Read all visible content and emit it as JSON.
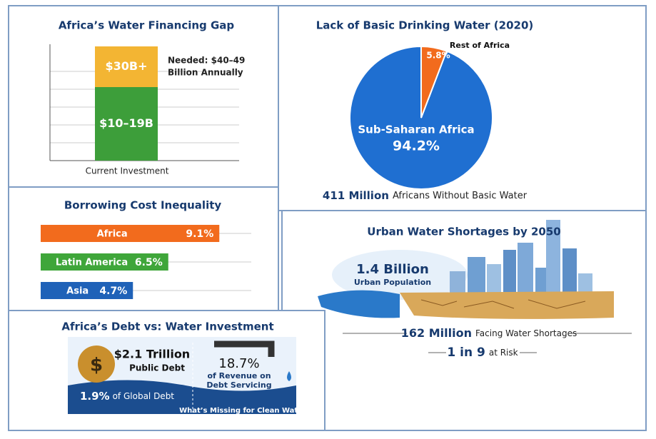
{
  "financing_gap": {
    "title": "Africa’s Water Financing Gap",
    "segments": [
      {
        "label": "$10–19B",
        "color": "#3d9e3a"
      },
      {
        "label": "$30B+",
        "color": "#f3b533"
      }
    ],
    "note_lines": [
      "Needed: $40–49",
      "Billion Annually"
    ],
    "axis_label": "Current Investment"
  },
  "chart_data": [
    {
      "type": "pie",
      "title": "Lack of Basic Drinking Water (2020)",
      "categories": [
        "Sub-Saharan Africa",
        "Rest of Africa"
      ],
      "values": [
        94.2,
        5.8
      ],
      "value_labels": [
        "94.2%",
        "5.8%"
      ],
      "colors": [
        "#1f6fd1",
        "#f26b1d"
      ],
      "caption_bold": "411 Million",
      "caption": "Africans Without Basic Water"
    },
    {
      "type": "hbar",
      "title": "Borrowing Cost Inequality",
      "categories": [
        "Africa",
        "Latin America",
        "Asia"
      ],
      "values": [
        9.1,
        6.5,
        4.7
      ],
      "value_labels": [
        "9.1%",
        "6.5%",
        "4.7%"
      ],
      "colors": [
        "#f26b1d",
        "#3fa63a",
        "#1f62b8"
      ]
    }
  ],
  "debt": {
    "title": "Africa’s Debt vs: Water Investment",
    "debt_value": "$2.1 Trillion",
    "debt_label": "Public Debt",
    "share": "1.9%",
    "share_label": "of Global Debt",
    "revenue_share": "18.7%",
    "revenue_label_lines": [
      "of Revenue on",
      "Debt Servicing"
    ],
    "footer": "What’s Missing for Clean Water"
  },
  "urban": {
    "title": "Urban Water Shortages by 2050",
    "population_value": "1.4 Billion",
    "population_label": "Urban Population",
    "shortage_value": "162 Million",
    "shortage_label": "Facing Water Shortages",
    "risk_value": "1 in 9",
    "risk_label": "at Risk"
  }
}
